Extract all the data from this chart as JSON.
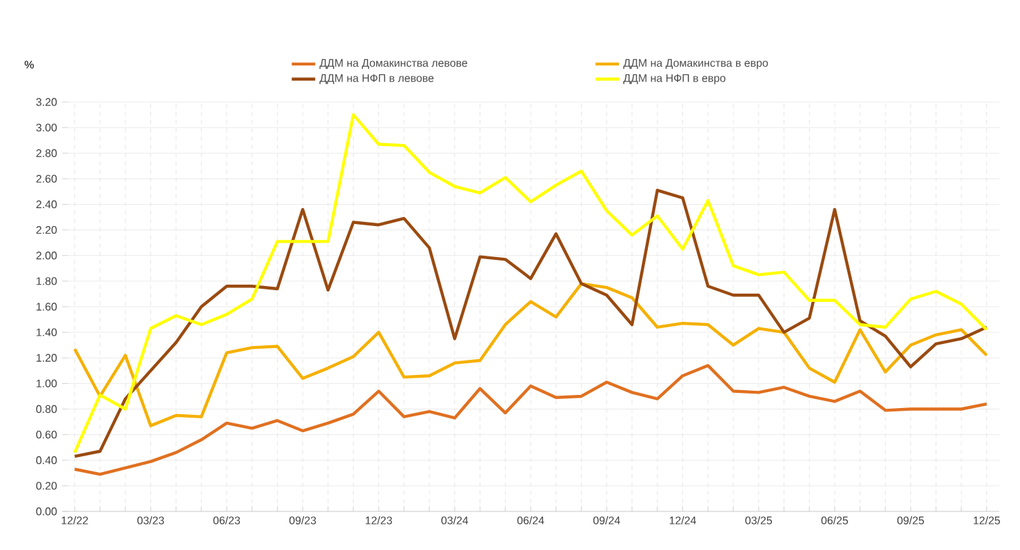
{
  "chart_data": {
    "type": "line",
    "ylabel": "%",
    "categories": [
      "12/22",
      null,
      null,
      "03/23",
      null,
      null,
      "06/23",
      null,
      null,
      "09/23",
      null,
      null,
      "12/23",
      null,
      null,
      "03/24",
      null,
      null,
      "06/24",
      null,
      null,
      "09/24",
      null,
      null,
      "12/24",
      null,
      null,
      "03/25",
      null,
      null,
      "06/25",
      null,
      null,
      "09/25",
      null,
      null,
      "12/25"
    ],
    "series": [
      {
        "name": "ДДМ на Домакинства левове",
        "color": "#e07020",
        "values": [
          0.33,
          0.29,
          0.34,
          0.39,
          0.46,
          0.56,
          0.69,
          0.65,
          0.71,
          0.63,
          0.69,
          0.76,
          0.94,
          0.74,
          0.78,
          0.73,
          0.96,
          0.77,
          0.98,
          0.89,
          0.9,
          1.01,
          0.93,
          0.88,
          1.06,
          1.14,
          0.94,
          0.93,
          0.97,
          0.9,
          0.86,
          0.94,
          0.79,
          0.8,
          0.8,
          0.8,
          0.84
        ]
      },
      {
        "name": "ДДМ на Домакинства в евро",
        "color": "#f5b000",
        "values": [
          1.27,
          0.9,
          1.22,
          0.67,
          0.75,
          0.74,
          1.24,
          1.28,
          1.29,
          1.04,
          1.12,
          1.21,
          1.4,
          1.05,
          1.06,
          1.16,
          1.18,
          1.46,
          1.64,
          1.52,
          1.78,
          1.75,
          1.67,
          1.44,
          1.47,
          1.46,
          1.3,
          1.43,
          1.4,
          1.12,
          1.01,
          1.42,
          1.09,
          1.3,
          1.38,
          1.42,
          1.22
        ]
      },
      {
        "name": "ДДМ на НФП  в левове",
        "color": "#9a4a10",
        "values": [
          0.43,
          0.47,
          0.88,
          1.1,
          1.32,
          1.6,
          1.76,
          1.76,
          1.74,
          2.36,
          1.73,
          2.26,
          2.24,
          2.29,
          2.06,
          1.35,
          1.99,
          1.97,
          1.82,
          2.17,
          1.78,
          1.69,
          1.46,
          2.51,
          2.45,
          1.76,
          1.69,
          1.69,
          1.4,
          1.51,
          2.36,
          1.49,
          1.37,
          1.13,
          1.31,
          1.35,
          1.44
        ]
      },
      {
        "name": "ДДМ на НФП  в евро",
        "color": "#ffff00",
        "values": [
          0.46,
          0.91,
          0.8,
          1.43,
          1.53,
          1.46,
          1.54,
          1.66,
          2.11,
          2.11,
          2.11,
          3.1,
          2.87,
          2.86,
          2.65,
          2.54,
          2.49,
          2.61,
          2.42,
          2.55,
          2.66,
          2.35,
          2.16,
          2.31,
          2.05,
          2.43,
          1.92,
          1.85,
          1.87,
          1.65,
          1.65,
          1.46,
          1.44,
          1.66,
          1.72,
          1.62,
          1.42
        ]
      }
    ],
    "ylim": [
      0,
      3.2
    ],
    "yticks": [
      {
        "value": 0,
        "label": "0.00"
      },
      {
        "value": 0.2,
        "label": "0.20"
      },
      {
        "value": 0.4,
        "label": "0.40"
      },
      {
        "value": 0.6,
        "label": "0.60"
      },
      {
        "value": 0.8,
        "label": "0.80"
      },
      {
        "value": 1.0,
        "label": "1.00"
      },
      {
        "value": 1.2,
        "label": "1.20"
      },
      {
        "value": 1.4,
        "label": "1.40"
      },
      {
        "value": 1.6,
        "label": "1.60"
      },
      {
        "value": 1.8,
        "label": "1.80"
      },
      {
        "value": 2.0,
        "label": "2.00"
      },
      {
        "value": 2.2,
        "label": "2.20"
      },
      {
        "value": 2.4,
        "label": "2.40"
      },
      {
        "value": 2.6,
        "label": "2.60"
      },
      {
        "value": 2.8,
        "label": "2.80"
      },
      {
        "value": 3.0,
        "label": "3.00"
      },
      {
        "value": 3.2,
        "label": "3.20"
      }
    ],
    "grid": true,
    "legend": "top",
    "marker": "none",
    "line_style": "solid"
  }
}
